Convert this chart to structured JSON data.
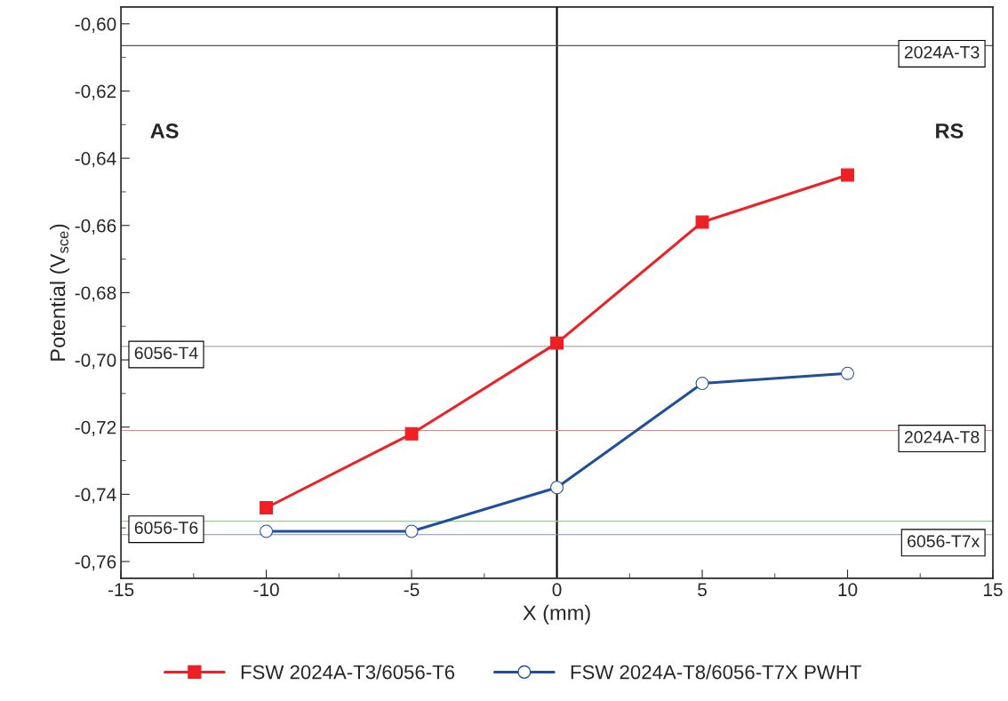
{
  "chart_data": {
    "type": "line",
    "xlabel": "X (mm)",
    "ylabel": "Potential (V$_{sce}$)",
    "x": [
      -10,
      -5,
      0,
      5,
      10
    ],
    "series": [
      {
        "name": "FSW 2024A-T3/6056-T6",
        "color": "#ee2024",
        "marker": "square",
        "values": [
          -0.744,
          -0.722,
          -0.695,
          -0.659,
          -0.645
        ]
      },
      {
        "name": "FSW 2024A-T8/6056-T7X PWHT",
        "color": "#1f4e9c",
        "marker": "circle",
        "values": [
          -0.751,
          -0.751,
          -0.738,
          -0.707,
          -0.704
        ]
      }
    ],
    "xlim": [
      -15,
      15
    ],
    "xticks": [
      -15,
      -10,
      -5,
      0,
      5,
      10,
      15
    ],
    "ylim": [
      -0.765,
      -0.595
    ],
    "yticks": [
      {
        "value": -0.76,
        "label": "-0,76"
      },
      {
        "value": -0.74,
        "label": "-0,74"
      },
      {
        "value": -0.72,
        "label": "-0,72"
      },
      {
        "value": -0.7,
        "label": "-0,70"
      },
      {
        "value": -0.68,
        "label": "-0,68"
      },
      {
        "value": -0.66,
        "label": "-0,66"
      },
      {
        "value": -0.64,
        "label": "-0,64"
      },
      {
        "value": -0.62,
        "label": "-0,62"
      },
      {
        "value": -0.6,
        "label": "-0,60"
      }
    ],
    "ref_lines": [
      {
        "axis": "x",
        "value": 0,
        "color": "#000000"
      },
      {
        "axis": "y",
        "value": -0.6065,
        "label": "2024A-T3",
        "color": "#555555"
      },
      {
        "axis": "y",
        "value": -0.696,
        "label": "6056-T4",
        "color": "#aaaaaa"
      },
      {
        "axis": "y",
        "value": -0.721,
        "label": "2024A-T8",
        "color": "#f08080"
      },
      {
        "axis": "y",
        "value": -0.748,
        "label": "6056-T6",
        "color": "#90d090"
      },
      {
        "axis": "y",
        "value": -0.752,
        "label": "6056-T7x",
        "color": "#8090c0"
      }
    ],
    "annotations": [
      "AS",
      "RS"
    ],
    "grid": false,
    "legend": "bottom"
  }
}
